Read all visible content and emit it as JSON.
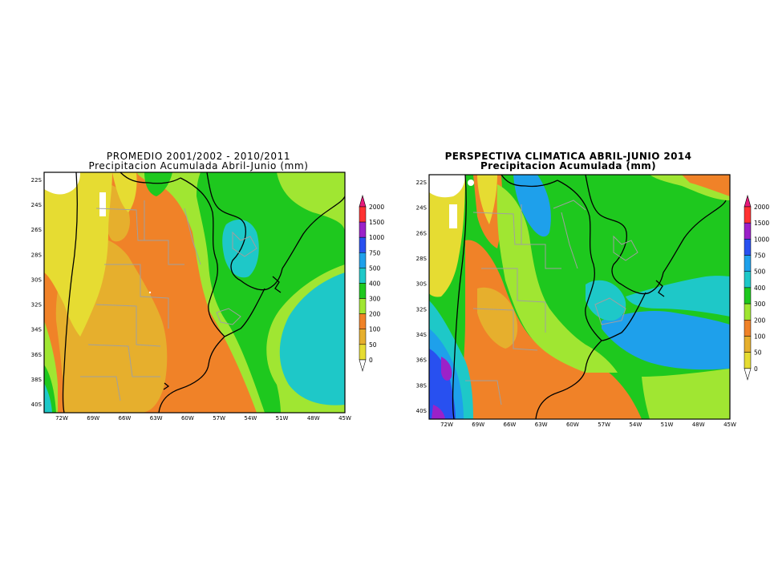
{
  "left_panel": {
    "title_line1": "PROMEDIO 2001/2002 - 2010/2011",
    "title_line2": "Precipitacion Acumulada Abril-Junio (mm)",
    "lat_labels": [
      "22S",
      "24S",
      "26S",
      "28S",
      "30S",
      "32S",
      "34S",
      "36S",
      "38S",
      "40S"
    ],
    "lon_labels": [
      "72W",
      "69W",
      "66W",
      "63W",
      "60W",
      "57W",
      "54W",
      "51W",
      "48W",
      "45W"
    ],
    "legend_labels": [
      "2000",
      "1500",
      "1000",
      "750",
      "500",
      "400",
      "300",
      "200",
      "100",
      "50",
      "0"
    ]
  },
  "right_panel": {
    "title_line1": "PERSPECTIVA CLIMATICA ABRIL-JUNIO 2014",
    "title_line2": "Precipitacion Acumulada (mm)",
    "lat_labels": [
      "22S",
      "24S",
      "26S",
      "28S",
      "30S",
      "32S",
      "34S",
      "36S",
      "38S",
      "40S"
    ],
    "lon_labels": [
      "72W",
      "69W",
      "66W",
      "63W",
      "60W",
      "57W",
      "54W",
      "51W",
      "48W",
      "45W"
    ],
    "legend_labels": [
      "2000",
      "1500",
      "1000",
      "750",
      "500",
      "400",
      "300",
      "200",
      "100",
      "50",
      "0"
    ]
  },
  "colors": {
    "c2000": "#e6197a",
    "c1500": "#ff3232",
    "c1000": "#9b21c8",
    "c750": "#2850f0",
    "c500": "#1ea0eb",
    "c400": "#1ec8c8",
    "c300": "#1ec81e",
    "c200": "#a0e632",
    "c100": "#f08228",
    "c50": "#e6af2d",
    "c0": "#e6dc32"
  }
}
